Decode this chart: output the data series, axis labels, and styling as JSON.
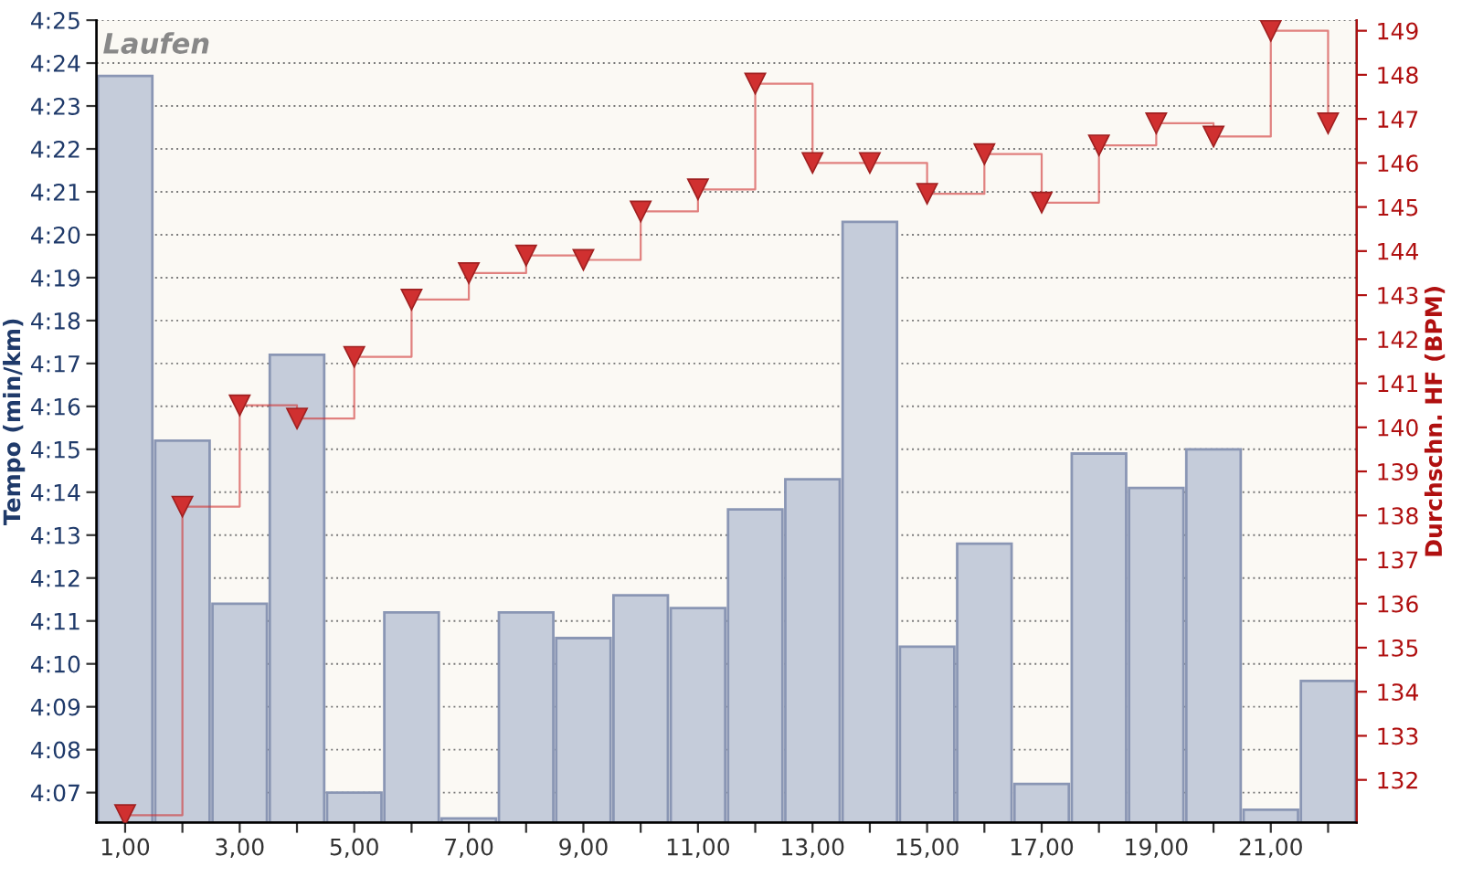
{
  "chart_data": {
    "type": "bar",
    "title": "Laufen",
    "ylabel": "Tempo (min/km)",
    "y2label": "Durchschn. HF (BPM)",
    "x": [
      1,
      2,
      3,
      4,
      5,
      6,
      7,
      8,
      9,
      10,
      11,
      12,
      13,
      14,
      15,
      16,
      17,
      18,
      19,
      20,
      21,
      22
    ],
    "xlim": [
      0.5,
      22.5
    ],
    "xticks": [
      {
        "value": 1,
        "label": "1,00"
      },
      {
        "value": 2,
        "label": null
      },
      {
        "value": 3,
        "label": "3,00"
      },
      {
        "value": 4,
        "label": null
      },
      {
        "value": 5,
        "label": "5,00"
      },
      {
        "value": 6,
        "label": null
      },
      {
        "value": 7,
        "label": "7,00"
      },
      {
        "value": 8,
        "label": null
      },
      {
        "value": 9,
        "label": "9,00"
      },
      {
        "value": 10,
        "label": null
      },
      {
        "value": 11,
        "label": "11,00"
      },
      {
        "value": 12,
        "label": null
      },
      {
        "value": 13,
        "label": "13,00"
      },
      {
        "value": 14,
        "label": null
      },
      {
        "value": 15,
        "label": "15,00"
      },
      {
        "value": 16,
        "label": null
      },
      {
        "value": 17,
        "label": "17,00"
      },
      {
        "value": 18,
        "label": null
      },
      {
        "value": 19,
        "label": "19,00"
      },
      {
        "value": 20,
        "label": null
      },
      {
        "value": 21,
        "label": "21,00"
      },
      {
        "value": 22,
        "label": null
      }
    ],
    "ylim": [
      246.3,
      265
    ],
    "yticks": [
      {
        "value": 247,
        "label": "4:07"
      },
      {
        "value": 248,
        "label": "4:08"
      },
      {
        "value": 249,
        "label": "4:09"
      },
      {
        "value": 250,
        "label": "4:10"
      },
      {
        "value": 251,
        "label": "4:11"
      },
      {
        "value": 252,
        "label": "4:12"
      },
      {
        "value": 253,
        "label": "4:13"
      },
      {
        "value": 254,
        "label": "4:14"
      },
      {
        "value": 255,
        "label": "4:15"
      },
      {
        "value": 256,
        "label": "4:16"
      },
      {
        "value": 257,
        "label": "4:17"
      },
      {
        "value": 258,
        "label": "4:18"
      },
      {
        "value": 259,
        "label": "4:19"
      },
      {
        "value": 260,
        "label": "4:20"
      },
      {
        "value": 261,
        "label": "4:21"
      },
      {
        "value": 262,
        "label": "4:22"
      },
      {
        "value": 263,
        "label": "4:23"
      },
      {
        "value": 264,
        "label": "4:24"
      },
      {
        "value": 265,
        "label": "4:25"
      }
    ],
    "y2lim": [
      131.03,
      149.24
    ],
    "y2ticks": [
      132,
      133,
      134,
      135,
      136,
      137,
      138,
      139,
      140,
      141,
      142,
      143,
      144,
      145,
      146,
      147,
      148,
      149
    ],
    "grid": "y",
    "series": [
      {
        "color": "#c5ccda",
        "values": [
          263.7,
          255.2,
          251.4,
          257.2,
          247.0,
          251.2,
          246.4,
          251.2,
          250.6,
          251.6,
          251.3,
          253.6,
          254.3,
          260.3,
          250.4,
          252.8,
          247.2,
          254.9,
          254.1,
          255.0,
          246.6,
          249.6
        ]
      },
      {
        "type": "step",
        "axis": "y2",
        "color": "#d03030",
        "marker": "triangle",
        "values": [
          131.2,
          138.2,
          140.5,
          140.2,
          141.6,
          142.9,
          143.5,
          143.9,
          143.8,
          144.9,
          145.4,
          147.8,
          146.0,
          146.0,
          145.3,
          146.2,
          145.1,
          146.4,
          146.9,
          146.6,
          149.0,
          146.9
        ]
      }
    ]
  }
}
